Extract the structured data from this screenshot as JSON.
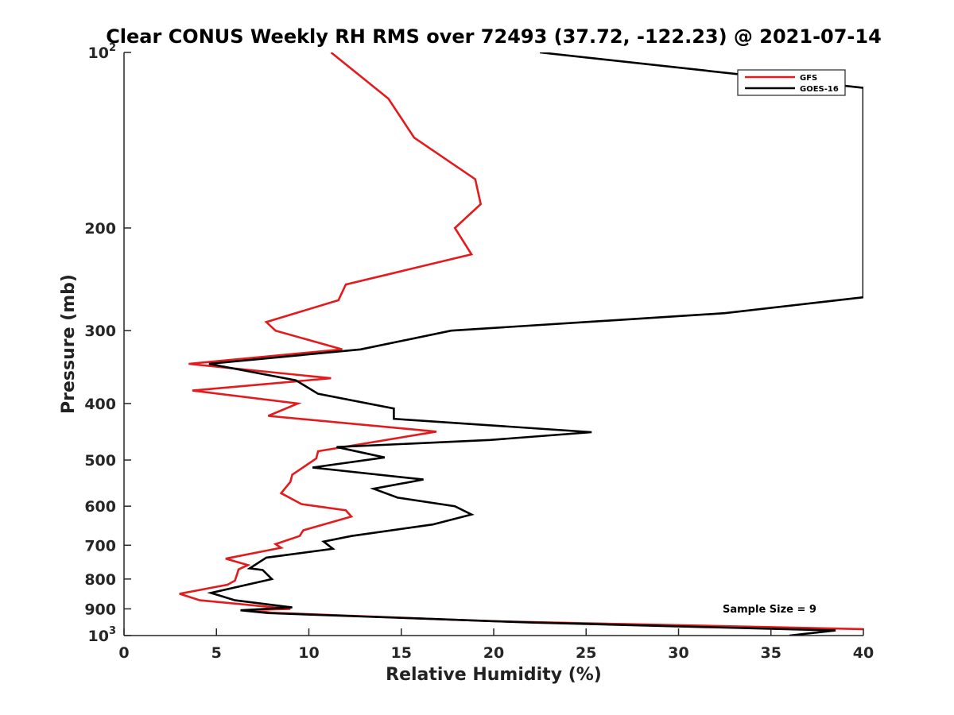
{
  "chart_data": {
    "type": "line",
    "title": "Clear CONUS Weekly RH RMS over 72493 (37.72, -122.23) @ 2021-07-14",
    "xlabel": "Relative Humidity (%)",
    "ylabel": "Pressure (mb)",
    "xlim": [
      0,
      40
    ],
    "ylim": [
      100,
      1000
    ],
    "yscale": "log",
    "y_inverted": true,
    "grid": false,
    "legend_position": "top-right",
    "x_ticks": [
      0,
      5,
      10,
      15,
      20,
      25,
      30,
      35,
      40
    ],
    "x_tick_labels": [
      "0",
      "5",
      "10",
      "15",
      "20",
      "25",
      "30",
      "35",
      "40"
    ],
    "y_ticks": [
      100,
      200,
      300,
      400,
      500,
      600,
      700,
      800,
      900,
      1000
    ],
    "y_tick_labels": [
      {
        "base": "10",
        "sup": "2"
      },
      {
        "base": "200",
        "sup": ""
      },
      {
        "base": "300",
        "sup": ""
      },
      {
        "base": "400",
        "sup": ""
      },
      {
        "base": "500",
        "sup": ""
      },
      {
        "base": "600",
        "sup": ""
      },
      {
        "base": "700",
        "sup": ""
      },
      {
        "base": "800",
        "sup": ""
      },
      {
        "base": "900",
        "sup": ""
      },
      {
        "base": "10",
        "sup": "3"
      }
    ],
    "annotation": "Sample Size = 9",
    "series": [
      {
        "name": "GFS",
        "color": "#e41a1c",
        "points": [
          [
            11.2,
            100
          ],
          [
            14.3,
            120
          ],
          [
            15.7,
            140
          ],
          [
            19.0,
            165
          ],
          [
            19.3,
            182
          ],
          [
            17.9,
            200
          ],
          [
            18.8,
            222
          ],
          [
            12.0,
            250
          ],
          [
            11.6,
            266
          ],
          [
            7.7,
            290
          ],
          [
            8.2,
            300
          ],
          [
            11.8,
            323
          ],
          [
            3.5,
            342
          ],
          [
            11.2,
            362
          ],
          [
            3.7,
            380
          ],
          [
            9.4,
            400
          ],
          [
            7.8,
            420
          ],
          [
            16.9,
            447
          ],
          [
            10.5,
            483
          ],
          [
            10.4,
            497
          ],
          [
            9.1,
            530
          ],
          [
            9.0,
            545
          ],
          [
            8.5,
            570
          ],
          [
            9.6,
            595
          ],
          [
            12.0,
            610
          ],
          [
            12.3,
            625
          ],
          [
            9.7,
            660
          ],
          [
            9.5,
            675
          ],
          [
            8.2,
            697
          ],
          [
            8.5,
            707
          ],
          [
            5.5,
            738
          ],
          [
            6.7,
            757
          ],
          [
            6.2,
            770
          ],
          [
            6.1,
            788
          ],
          [
            6.0,
            805
          ],
          [
            5.6,
            818
          ],
          [
            3.0,
            848
          ],
          [
            4.1,
            870
          ],
          [
            9.0,
            900
          ],
          [
            6.8,
            904
          ],
          [
            8.0,
            914
          ],
          [
            20.0,
            945
          ],
          [
            40.0,
            975
          ]
        ]
      },
      {
        "name": "GOES-16",
        "color": "#000000",
        "points": [
          [
            22.5,
            100
          ],
          [
            40.0,
            115
          ],
          [
            40.0,
            263
          ],
          [
            32.5,
            280
          ],
          [
            17.7,
            300
          ],
          [
            12.8,
            323
          ],
          [
            4.6,
            342
          ],
          [
            9.3,
            365
          ],
          [
            10.5,
            385
          ],
          [
            14.6,
            408
          ],
          [
            14.6,
            425
          ],
          [
            25.3,
            448
          ],
          [
            19.8,
            462
          ],
          [
            11.5,
            475
          ],
          [
            14.1,
            495
          ],
          [
            10.2,
            515
          ],
          [
            16.2,
            540
          ],
          [
            13.5,
            560
          ],
          [
            14.8,
            580
          ],
          [
            17.9,
            600
          ],
          [
            18.8,
            620
          ],
          [
            16.7,
            645
          ],
          [
            12.3,
            675
          ],
          [
            10.8,
            690
          ],
          [
            11.3,
            710
          ],
          [
            7.7,
            735
          ],
          [
            6.8,
            767
          ],
          [
            7.5,
            772
          ],
          [
            8.0,
            800
          ],
          [
            4.7,
            845
          ],
          [
            6.0,
            870
          ],
          [
            9.1,
            895
          ],
          [
            6.3,
            905
          ],
          [
            7.8,
            915
          ],
          [
            22.0,
            950
          ],
          [
            38.5,
            980
          ],
          [
            36.0,
            1000
          ]
        ]
      }
    ]
  }
}
